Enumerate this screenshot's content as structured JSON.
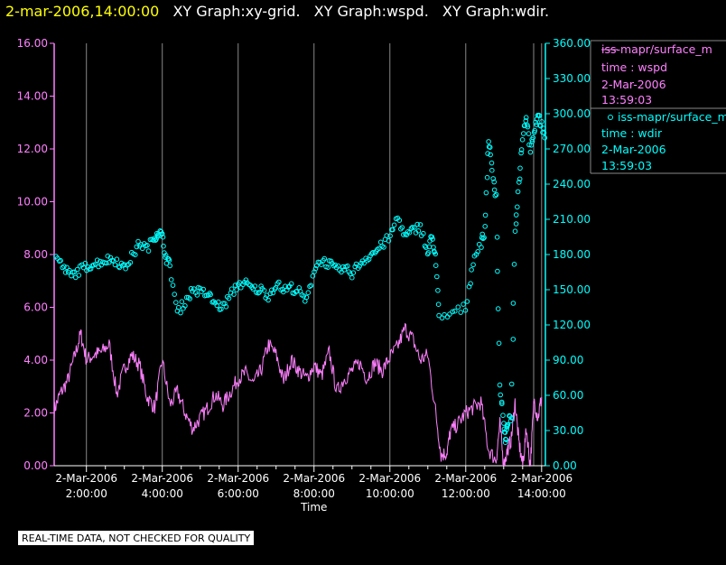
{
  "header": {
    "timestamp": "2-mar-2006,14:00:00",
    "graphs": [
      "XY Graph:xy-grid.",
      "XY Graph:wspd.",
      "XY Graph:wdir."
    ]
  },
  "legend": [
    {
      "line1": "iss-mapr/surface_m",
      "line2": "time : wspd",
      "line3": "2-Mar-2006",
      "line4": "13:59:03",
      "color": "#ff80ff",
      "marker": "line"
    },
    {
      "line1": "iss-mapr/surface_m",
      "line2": "time : wdir",
      "line3": "2-Mar-2006",
      "line4": "13:59:03",
      "color": "#00ffff",
      "marker": "circle"
    }
  ],
  "footer": {
    "note": "REAL-TIME DATA, NOT CHECKED FOR QUALITY"
  },
  "colors": {
    "background": "#000000",
    "wspd": "#ff80ff",
    "wdir": "#00ffff",
    "grid": "#888888",
    "title_time": "#ffff00"
  },
  "chart_data": {
    "type": "line",
    "xlabel": "Time",
    "x_tick_labels": [
      {
        "date": "2-Mar-2006",
        "time": "2:00:00"
      },
      {
        "date": "2-Mar-2006",
        "time": "4:00:00"
      },
      {
        "date": "2-Mar-2006",
        "time": "6:00:00"
      },
      {
        "date": "2-Mar-2006",
        "time": "8:00:00"
      },
      {
        "date": "2-Mar-2006",
        "time": "10:00:00"
      },
      {
        "date": "2-Mar-2006",
        "time": "12:00:00"
      },
      {
        "date": "2-Mar-2006",
        "time": "14:00:00"
      }
    ],
    "xlim_hours": [
      1.15,
      14.1
    ],
    "y_left": {
      "lim": [
        0,
        16
      ],
      "ticks": [
        "0.00",
        "2.00",
        "4.00",
        "6.00",
        "8.00",
        "10.00",
        "12.00",
        "14.00",
        "16.00"
      ]
    },
    "y_right": {
      "lim": [
        0,
        360
      ],
      "ticks": [
        "0.00",
        "30.00",
        "60.00",
        "90.00",
        "120.00",
        "150.00",
        "180.00",
        "210.00",
        "240.00",
        "270.00",
        "300.00",
        "330.00",
        "360.00"
      ]
    },
    "grid": "vertical lines at tick hours",
    "series": [
      {
        "name": "time : wspd",
        "axis": "left",
        "style": "line",
        "x": [
          1.15,
          1.3,
          1.5,
          1.7,
          1.85,
          2.0,
          2.2,
          2.4,
          2.6,
          2.8,
          3.0,
          3.2,
          3.4,
          3.6,
          3.8,
          4.0,
          4.2,
          4.4,
          4.6,
          4.8,
          5.0,
          5.2,
          5.4,
          5.6,
          5.8,
          6.0,
          6.2,
          6.4,
          6.6,
          6.8,
          7.0,
          7.2,
          7.4,
          7.6,
          7.8,
          8.0,
          8.2,
          8.4,
          8.6,
          8.8,
          9.0,
          9.2,
          9.4,
          9.6,
          9.8,
          10.0,
          10.2,
          10.4,
          10.6,
          10.8,
          11.0,
          11.2,
          11.35,
          11.5,
          11.6,
          11.8,
          12.0,
          12.2,
          12.4,
          12.6,
          12.8,
          12.9,
          13.0,
          13.1,
          13.2,
          13.3,
          13.4,
          13.5,
          13.6,
          13.7,
          13.8,
          13.9,
          14.0
        ],
        "y": [
          2.1,
          2.7,
          3.2,
          4.2,
          5.0,
          4.0,
          4.2,
          4.3,
          4.6,
          2.7,
          3.7,
          4.2,
          3.8,
          2.6,
          2.2,
          4.0,
          2.3,
          2.8,
          2.0,
          1.4,
          1.8,
          2.2,
          2.7,
          2.3,
          2.8,
          3.3,
          3.5,
          3.1,
          3.6,
          4.6,
          4.2,
          3.2,
          4.0,
          3.6,
          3.3,
          3.8,
          3.4,
          4.3,
          2.8,
          3.3,
          3.6,
          3.9,
          3.3,
          3.9,
          3.6,
          4.1,
          4.5,
          5.2,
          4.8,
          4.0,
          4.2,
          2.1,
          0.4,
          0.5,
          1.3,
          1.6,
          2.0,
          2.2,
          2.4,
          0.6,
          0.2,
          1.6,
          0.0,
          0.6,
          1.0,
          2.4,
          0.9,
          0.0,
          1.4,
          0.0,
          2.5,
          1.8,
          2.6
        ]
      },
      {
        "name": "time : wdir",
        "axis": "right",
        "style": "scatter",
        "x": [
          1.2,
          1.4,
          1.6,
          1.8,
          2.0,
          2.2,
          2.4,
          2.6,
          2.8,
          3.0,
          3.2,
          3.4,
          3.6,
          3.8,
          3.9,
          4.0,
          4.1,
          4.2,
          4.4,
          4.6,
          4.8,
          5.0,
          5.2,
          5.4,
          5.6,
          5.8,
          6.0,
          6.2,
          6.4,
          6.6,
          6.8,
          7.0,
          7.2,
          7.4,
          7.6,
          7.8,
          8.0,
          8.2,
          8.4,
          8.6,
          8.8,
          9.0,
          9.2,
          9.4,
          9.6,
          9.8,
          10.0,
          10.2,
          10.4,
          10.6,
          10.8,
          11.0,
          11.1,
          11.2,
          11.3,
          12.0,
          12.2,
          12.4,
          12.5,
          12.6,
          12.7,
          12.8,
          12.9,
          13.0,
          13.05,
          13.1,
          13.2,
          13.3,
          13.4,
          13.5,
          13.6,
          13.7,
          13.8,
          13.9,
          14.0,
          14.1
        ],
        "y": [
          178,
          168,
          162,
          166,
          170,
          172,
          174,
          176,
          175,
          168,
          178,
          190,
          185,
          195,
          200,
          195,
          178,
          170,
          130,
          140,
          150,
          148,
          146,
          138,
          135,
          145,
          155,
          155,
          150,
          150,
          145,
          155,
          150,
          152,
          148,
          140,
          168,
          175,
          172,
          166,
          168,
          164,
          172,
          178,
          182,
          188,
          195,
          212,
          195,
          200,
          205,
          180,
          195,
          180,
          125,
          135,
          175,
          190,
          200,
          280,
          250,
          230,
          70,
          35,
          20,
          38,
          40,
          200,
          240,
          280,
          300,
          270,
          285,
          300,
          290,
          275
        ],
        "extra_marks": "dense cloud of circular markers following this trend"
      }
    ]
  }
}
